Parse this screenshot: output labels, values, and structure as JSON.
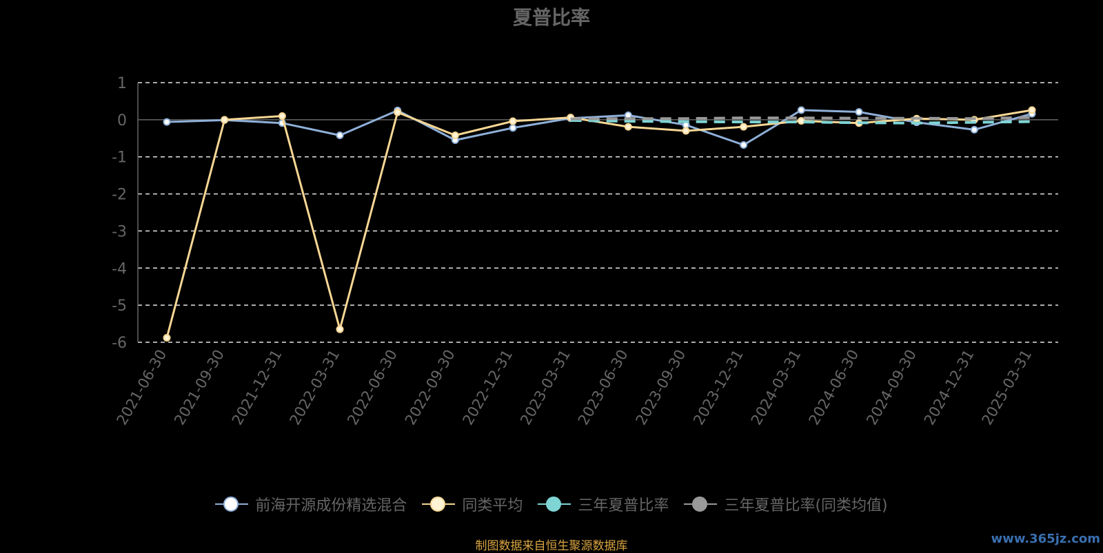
{
  "chart_data": {
    "type": "line",
    "title": "夏普比率",
    "x": [
      "2021-06-30",
      "2021-09-30",
      "2021-12-31",
      "2022-03-31",
      "2022-06-30",
      "2022-09-30",
      "2022-12-31",
      "2023-03-31",
      "2023-06-30",
      "2023-09-30",
      "2023-12-31",
      "2024-03-31",
      "2024-06-30",
      "2024-09-30",
      "2024-12-31",
      "2025-03-31"
    ],
    "ylim": [
      -6,
      1
    ],
    "yticks": [
      1,
      0,
      -1,
      -2,
      -3,
      -4,
      -5,
      -6
    ],
    "grid": true,
    "legend_position": "bottom",
    "series": [
      {
        "name": "前海开源成份精选混合",
        "color": "#8fb0d9",
        "marker_fill": "#ffffff",
        "style": "solid",
        "values": [
          -0.06,
          -0.01,
          -0.09,
          -0.42,
          0.25,
          -0.55,
          -0.22,
          0.04,
          0.12,
          -0.14,
          -0.68,
          0.26,
          0.21,
          -0.07,
          -0.27,
          0.16
        ]
      },
      {
        "name": "同类平均",
        "color": "#f7d794",
        "marker_fill": "#fff3d6",
        "style": "solid",
        "values": [
          -5.88,
          0.0,
          0.1,
          -5.65,
          0.2,
          -0.42,
          -0.04,
          0.06,
          -0.19,
          -0.3,
          -0.19,
          -0.03,
          -0.09,
          0.03,
          0.0,
          0.26
        ]
      },
      {
        "name": "三年夏普比率",
        "color": "#7fd4d4",
        "marker_fill": "#7fd4d4",
        "style": "dashed",
        "values": [
          null,
          null,
          null,
          null,
          null,
          null,
          null,
          -0.02,
          -0.04,
          -0.05,
          -0.06,
          -0.06,
          -0.08,
          -0.09,
          -0.07,
          -0.05
        ]
      },
      {
        "name": "三年夏普比率(同类均值)",
        "color": "#999999",
        "marker_fill": "#999999",
        "style": "dashed",
        "values": [
          null,
          null,
          null,
          null,
          null,
          null,
          null,
          0.02,
          0.03,
          0.03,
          0.05,
          0.05,
          0.04,
          0.04,
          0.03,
          0.06
        ]
      }
    ]
  },
  "source_text": "制图数据来自恒生聚源数据库",
  "watermark_text": "www.365jz.com"
}
